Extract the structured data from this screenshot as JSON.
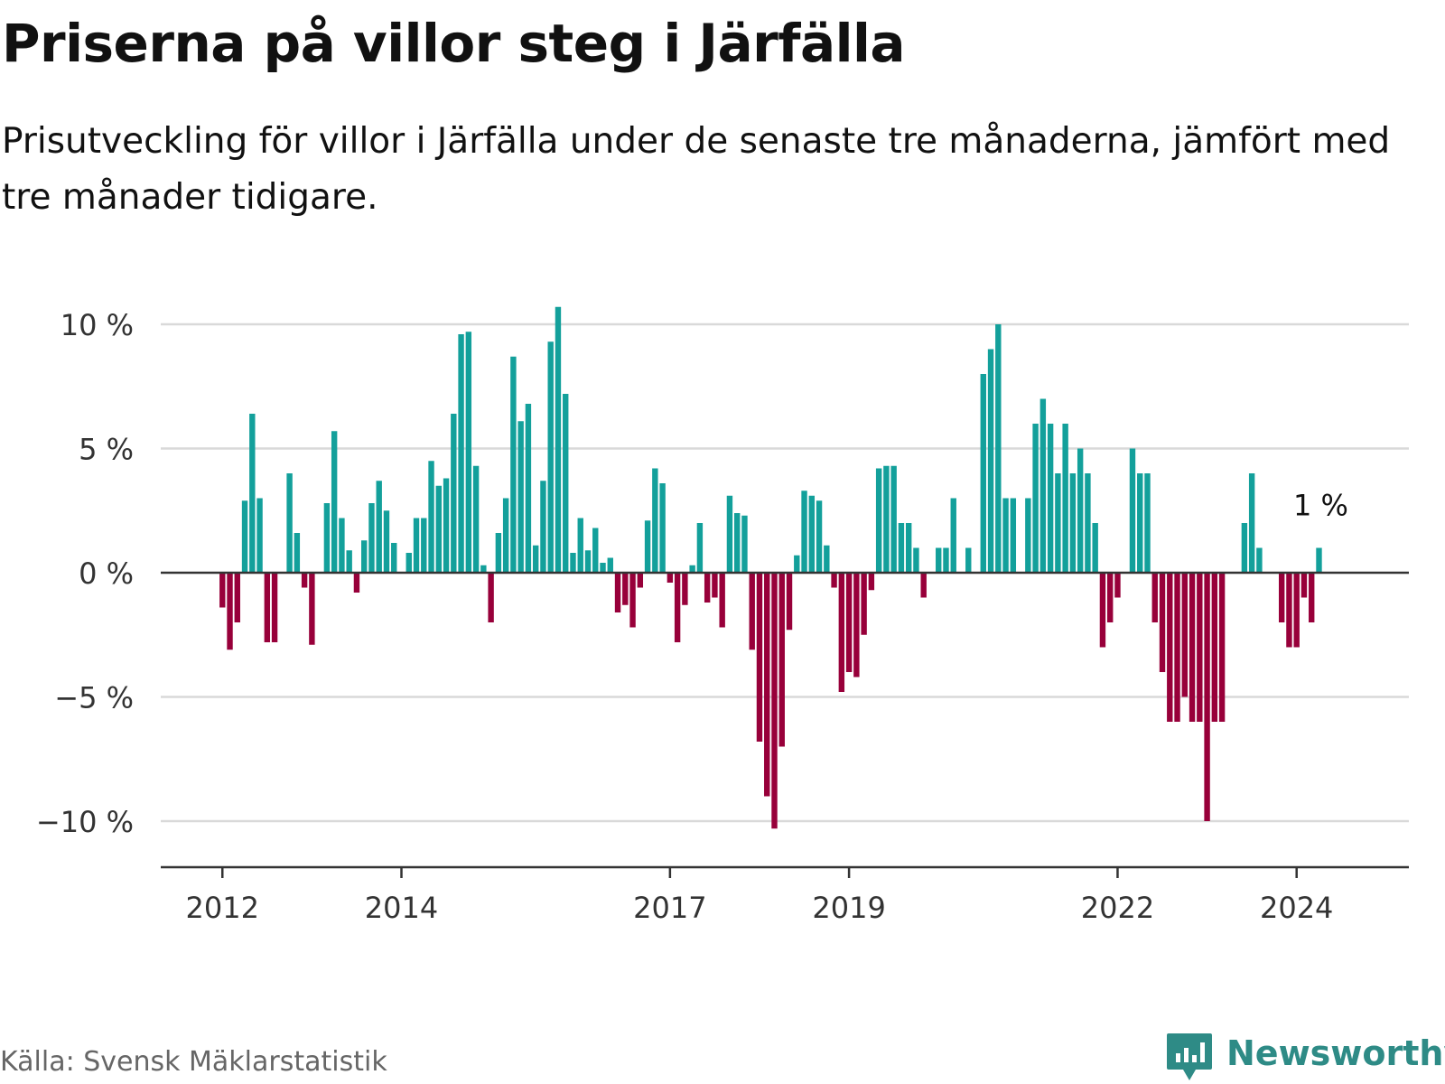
{
  "title": "Priserna på villor steg i Järfälla",
  "subtitle": "Prisutveckling för villor i Järfälla under de senaste tre månaderna, jämfört med tre månader tidigare.",
  "source": "Källa: Svensk Mäklarstatistik",
  "logo_text": "Newsworthy",
  "colors": {
    "positive": "#13a09b",
    "negative": "#98003a",
    "grid": "#d9d9d9",
    "axis": "#333333",
    "brand": "#2e8b86"
  },
  "chart_data": {
    "type": "bar",
    "title": "Priserna på villor steg i Järfälla",
    "xlabel": "",
    "ylabel": "",
    "ylim": [
      -11,
      11
    ],
    "ytick_values": [
      10,
      5,
      0,
      -5,
      -10
    ],
    "ytick_labels": [
      "10 %",
      "5 %",
      "0 %",
      "−5 %",
      "−10 %"
    ],
    "xtick_labels": [
      "2012",
      "2014",
      "2017",
      "2019",
      "2022",
      "2024"
    ],
    "xtick_index": [
      1,
      25,
      61,
      85,
      121,
      145
    ],
    "start_month": "2011-12",
    "last_label": "1 %",
    "values": [
      null,
      -1.4,
      -3.1,
      -2.0,
      2.9,
      6.4,
      3.0,
      -2.8,
      -2.8,
      null,
      4.0,
      1.6,
      -0.6,
      -2.9,
      null,
      2.8,
      5.7,
      2.2,
      0.9,
      -0.8,
      1.3,
      2.8,
      3.7,
      2.5,
      1.2,
      null,
      0.8,
      2.2,
      2.2,
      4.5,
      3.5,
      3.8,
      6.4,
      9.6,
      9.7,
      4.3,
      0.3,
      -2.0,
      1.6,
      3.0,
      8.7,
      6.1,
      6.8,
      1.1,
      3.7,
      9.3,
      10.7,
      7.2,
      0.8,
      2.2,
      0.9,
      1.8,
      0.4,
      0.6,
      -1.6,
      -1.3,
      -2.2,
      -0.6,
      2.1,
      4.2,
      3.6,
      -0.4,
      -2.8,
      -1.3,
      0.3,
      2.0,
      -1.2,
      -1.0,
      -2.2,
      3.1,
      2.4,
      2.3,
      -3.1,
      -6.8,
      -9.0,
      -10.3,
      -7.0,
      -2.3,
      0.7,
      3.3,
      3.1,
      2.9,
      1.1,
      -0.6,
      -4.8,
      -4.0,
      -4.2,
      -2.5,
      -0.7,
      4.2,
      4.3,
      4.3,
      2.0,
      2.0,
      1.0,
      -1.0,
      null,
      1.0,
      1.0,
      3.0,
      null,
      1.0,
      null,
      8.0,
      9.0,
      10.0,
      3.0,
      3.0,
      null,
      3.0,
      6.0,
      7.0,
      6.0,
      4.0,
      6.0,
      4.0,
      5.0,
      4.0,
      2.0,
      -3.0,
      -2.0,
      -1.0,
      null,
      5.0,
      4.0,
      4.0,
      -2.0,
      -4.0,
      -6.0,
      -6.0,
      -5.0,
      -6.0,
      -6.0,
      -10.0,
      -6.0,
      -6.0,
      null,
      null,
      2.0,
      4.0,
      1.0,
      null,
      null,
      -2.0,
      -3.0,
      -3.0,
      -1.0,
      -2.0,
      1.0
    ]
  }
}
